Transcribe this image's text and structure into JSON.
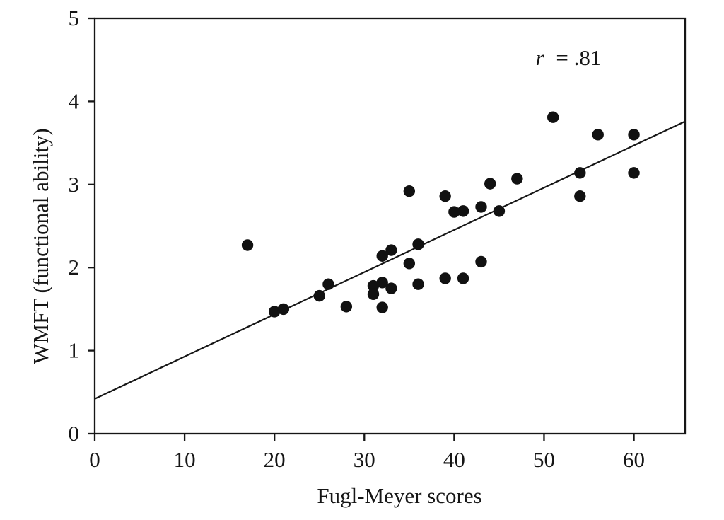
{
  "figure": {
    "background_color": "#ffffff",
    "ink_color": "#161616",
    "marker_color": "#111111"
  },
  "chart_data": {
    "type": "scatter",
    "title": "",
    "xlabel": "Fugl-Meyer scores",
    "ylabel": "WMFT (functional ability)",
    "annotation": {
      "symbol": "r",
      "rest": "= .81",
      "text": "r = .81"
    },
    "xlim": [
      0,
      65.7
    ],
    "ylim": [
      0,
      5
    ],
    "xticks": [
      0,
      10,
      20,
      30,
      40,
      50,
      60
    ],
    "yticks": [
      0,
      1,
      2,
      3,
      4,
      5
    ],
    "grid": false,
    "legend": "none",
    "marker": {
      "shape": "circle",
      "radius_px": 8.2
    },
    "points": [
      [
        17,
        2.27
      ],
      [
        20,
        1.47
      ],
      [
        21,
        1.5
      ],
      [
        25,
        1.66
      ],
      [
        26,
        1.8
      ],
      [
        28,
        1.53
      ],
      [
        31,
        1.78
      ],
      [
        31,
        1.68
      ],
      [
        32,
        1.82
      ],
      [
        33,
        1.75
      ],
      [
        32,
        1.52
      ],
      [
        32,
        2.14
      ],
      [
        33,
        2.21
      ],
      [
        35,
        2.05
      ],
      [
        35,
        2.92
      ],
      [
        36,
        2.28
      ],
      [
        36,
        1.8
      ],
      [
        39,
        2.86
      ],
      [
        39,
        1.87
      ],
      [
        40,
        2.67
      ],
      [
        41,
        2.68
      ],
      [
        41,
        1.87
      ],
      [
        43,
        2.73
      ],
      [
        43,
        2.07
      ],
      [
        44,
        3.01
      ],
      [
        45,
        2.68
      ],
      [
        47,
        3.07
      ],
      [
        51,
        3.81
      ],
      [
        54,
        3.14
      ],
      [
        54,
        2.86
      ],
      [
        56,
        3.6
      ],
      [
        60,
        3.6
      ],
      [
        60,
        3.14
      ]
    ],
    "regression_line": {
      "x1": 0,
      "y1": 0.42,
      "x2": 65.7,
      "y2": 3.76
    }
  }
}
